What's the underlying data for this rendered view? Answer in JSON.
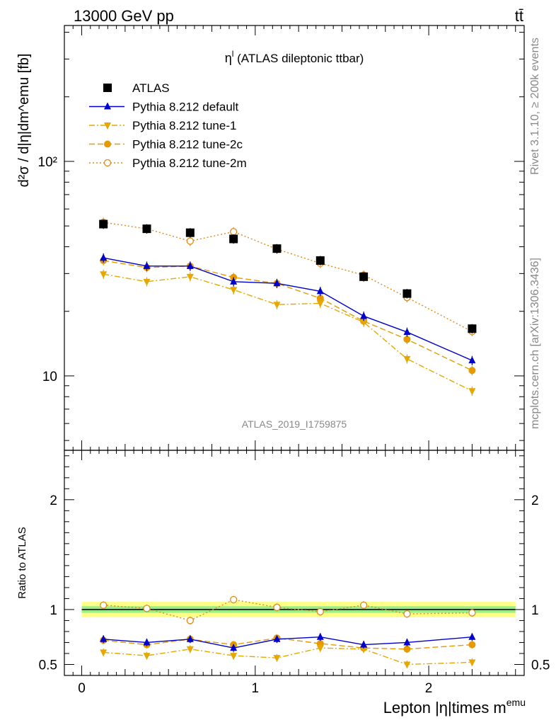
{
  "header": {
    "energy_label": "13000 GeV pp",
    "process_label": "tt̄"
  },
  "side_labels": {
    "rivet": "Rivet 3.1.10, ≥ 200k events",
    "mcplots": "mcplots.cern.ch [arXiv:1306.3436]"
  },
  "chart_data": {
    "type": "scatter",
    "title_prefix": "η",
    "title_sup": "l",
    "title_rest": " (ATLAS dileptonic ttbar)",
    "watermark": "ATLAS_2019_I1759875",
    "xlabel_main": "Lepton |η|times m",
    "xlabel_sup": "emu",
    "ylabel": "d²σ / d|η|dm^emu [fb]",
    "ratio_ylabel": "Ratio to ATLAS",
    "xlim": [
      -0.1,
      2.55
    ],
    "ylim_log": [
      4.5,
      430
    ],
    "ratio_ylim": [
      0.4,
      2.45
    ],
    "x_ticks": [
      {
        "v": 0,
        "label": "0"
      },
      {
        "v": 1,
        "label": "1"
      },
      {
        "v": 2,
        "label": "2"
      }
    ],
    "y_ticks": [
      {
        "v": 10,
        "label": "10"
      },
      {
        "v": 100,
        "label": "10²"
      }
    ],
    "ratio_ticks": [
      {
        "v": 0.5,
        "label": "0.5"
      },
      {
        "v": 1,
        "label": "1"
      },
      {
        "v": 2,
        "label": "2"
      }
    ],
    "x": [
      0.125,
      0.375,
      0.625,
      0.875,
      1.125,
      1.375,
      1.625,
      1.875,
      2.25
    ],
    "series": [
      {
        "name": "ATLAS",
        "key": "atlas",
        "color": "#000000",
        "marker": "square",
        "line": "none",
        "values": [
          51.0,
          48.5,
          46.5,
          43.5,
          39.2,
          34.5,
          29.0,
          24.2,
          16.6
        ]
      },
      {
        "name": "Pythia 8.212 default",
        "key": "default",
        "color": "#0000cc",
        "marker": "triangle-up",
        "line": "solid",
        "values": [
          35.5,
          32.5,
          32.5,
          27.5,
          27.0,
          24.8,
          19.0,
          16.0,
          11.8
        ]
      },
      {
        "name": "Pythia 8.212 tune-1",
        "key": "tune1",
        "color": "#e6a800",
        "marker": "triangle-down",
        "line": "dashdot",
        "values": [
          29.8,
          27.5,
          29.0,
          25.2,
          21.5,
          21.8,
          17.8,
          12.0,
          8.5
        ]
      },
      {
        "name": "Pythia 8.212 tune-2c",
        "key": "tune2c",
        "color": "#e69a00",
        "marker": "circle",
        "line": "dashed",
        "values": [
          34.5,
          32.0,
          32.5,
          28.8,
          27.0,
          23.0,
          18.0,
          14.8,
          10.6
        ]
      },
      {
        "name": "Pythia 8.212 tune-2m",
        "key": "tune2m",
        "color": "#e08a1a",
        "marker": "open-circle",
        "line": "dotted",
        "values": [
          52.0,
          48.5,
          42.5,
          47.0,
          39.0,
          33.5,
          29.5,
          23.2,
          16.1
        ]
      }
    ],
    "ratios": [
      {
        "key": "default",
        "values": [
          0.73,
          0.7,
          0.73,
          0.65,
          0.73,
          0.75,
          0.68,
          0.7,
          0.75
        ]
      },
      {
        "key": "tune1",
        "values": [
          0.61,
          0.58,
          0.64,
          0.58,
          0.56,
          0.65,
          0.64,
          0.5,
          0.52
        ]
      },
      {
        "key": "tune2c",
        "values": [
          0.72,
          0.68,
          0.73,
          0.68,
          0.74,
          0.69,
          0.65,
          0.64,
          0.68
        ]
      },
      {
        "key": "tune2m",
        "values": [
          1.04,
          1.01,
          0.9,
          1.09,
          1.02,
          0.98,
          1.04,
          0.96,
          0.97
        ]
      }
    ],
    "ratio_band_inner": [
      0.97,
      1.03
    ],
    "ratio_band_outer": [
      0.93,
      1.07
    ]
  }
}
